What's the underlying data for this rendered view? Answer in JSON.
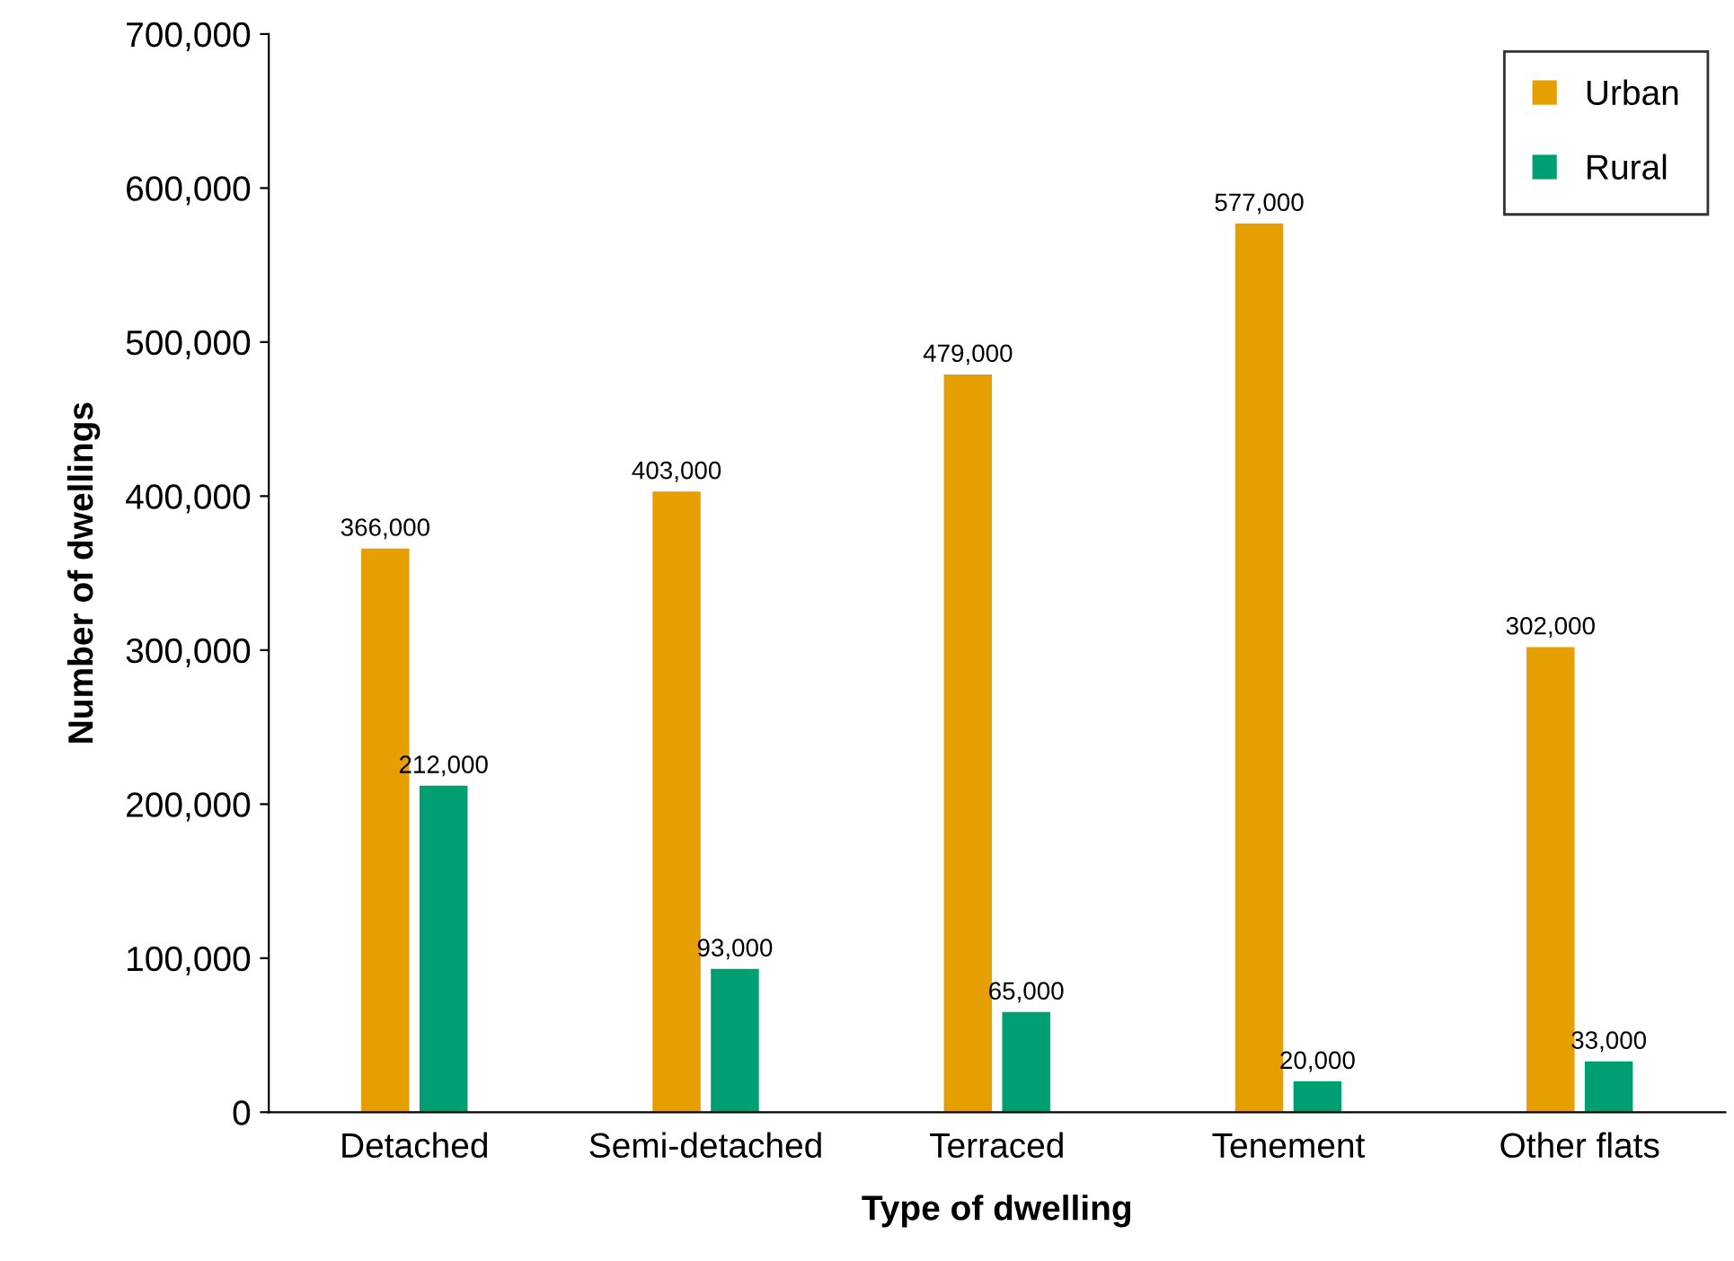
{
  "chart_data": {
    "type": "bar",
    "xlabel": "Type of dwelling",
    "ylabel": "Number of dwellings",
    "categories": [
      "Detached",
      "Semi-detached",
      "Terraced",
      "Tenement",
      "Other flats"
    ],
    "series": [
      {
        "name": "Urban",
        "color": "#e69f00",
        "values": [
          366000,
          403000,
          479000,
          577000,
          302000
        ],
        "value_labels": [
          "366,000",
          "403,000",
          "479,000",
          "577,000",
          "302,000"
        ]
      },
      {
        "name": "Rural",
        "color": "#009e73",
        "values": [
          212000,
          93000,
          65000,
          20000,
          33000
        ],
        "value_labels": [
          "212,000",
          "93,000",
          "65,000",
          "20,000",
          "33,000"
        ]
      }
    ],
    "ylim": [
      0,
      700000
    ],
    "yticks": [
      {
        "value": 0,
        "label": "0"
      },
      {
        "value": 100000,
        "label": "100,000"
      },
      {
        "value": 200000,
        "label": "200,000"
      },
      {
        "value": 300000,
        "label": "300,000"
      },
      {
        "value": 400000,
        "label": "400,000"
      },
      {
        "value": 500000,
        "label": "500,000"
      },
      {
        "value": 600000,
        "label": "600,000"
      },
      {
        "value": 700000,
        "label": "700,000"
      }
    ],
    "grid": false,
    "legend": "top right"
  }
}
